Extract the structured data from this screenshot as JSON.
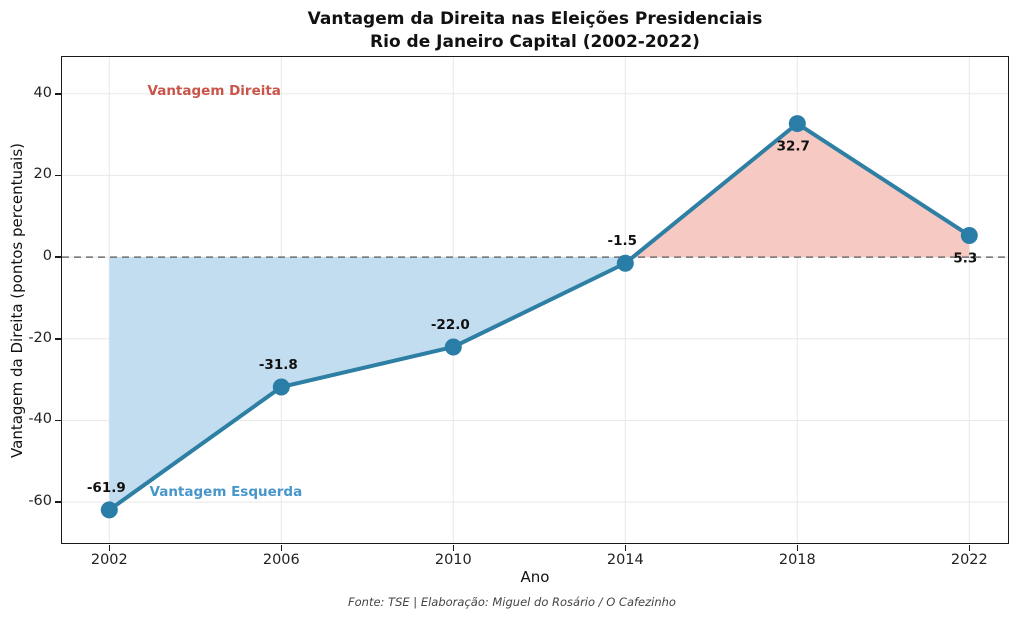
{
  "title": {
    "line1": "Vantagem da Direita nas Eleições Presidenciais",
    "line2": "Rio de Janeiro Capital (2002-2022)"
  },
  "axes": {
    "x_label": "Ano",
    "y_label": "Vantagem da Direita (pontos percentuais)"
  },
  "annotations": {
    "right_region": {
      "text": "Vantagem Direita",
      "color": "#c9554a"
    },
    "left_region": {
      "text": "Vantagem Esquerda",
      "color": "#4796cb"
    }
  },
  "footer": "Fonte: TSE | Elaboração: Miguel do Rosário / O Cafezinho",
  "chart_data": {
    "type": "line",
    "title": "Vantagem da Direita nas Eleições Presidenciais — Rio de Janeiro Capital (2002-2022)",
    "xlabel": "Ano",
    "ylabel": "Vantagem da Direita (pontos percentuais)",
    "x": [
      2002,
      2006,
      2010,
      2014,
      2018,
      2022
    ],
    "values": [
      -61.9,
      -31.8,
      -22.0,
      -1.5,
      32.7,
      5.3
    ],
    "point_labels": [
      "-61.9",
      "-31.8",
      "-22.0",
      "-1.5",
      "32.7",
      "5.3"
    ],
    "label_positions": [
      "above",
      "above",
      "above",
      "above",
      "below",
      "below"
    ],
    "x_ticks": [
      "2002",
      "2006",
      "2010",
      "2014",
      "2018",
      "2022"
    ],
    "x_tick_values": [
      2002,
      2006,
      2010,
      2014,
      2018,
      2022
    ],
    "y_ticks": [
      "40",
      "20",
      "0",
      "-20",
      "-40",
      "-60"
    ],
    "y_tick_values": [
      40,
      20,
      0,
      -20,
      -40,
      -60
    ],
    "xlim": [
      2000.9,
      2022.9
    ],
    "ylim": [
      -70,
      49
    ],
    "grid": true,
    "zero_line_dashed": true,
    "legend_position": "none",
    "colors": {
      "line": "#2e7fa4",
      "marker": "#2a7da6",
      "fill_positive": "#f6c9c3",
      "fill_negative": "#c3ddf0",
      "grid": "#e8e8e8",
      "zero_line": "#6e6e6e",
      "spine": "#1a1a1a",
      "point_label": "#111111"
    }
  }
}
